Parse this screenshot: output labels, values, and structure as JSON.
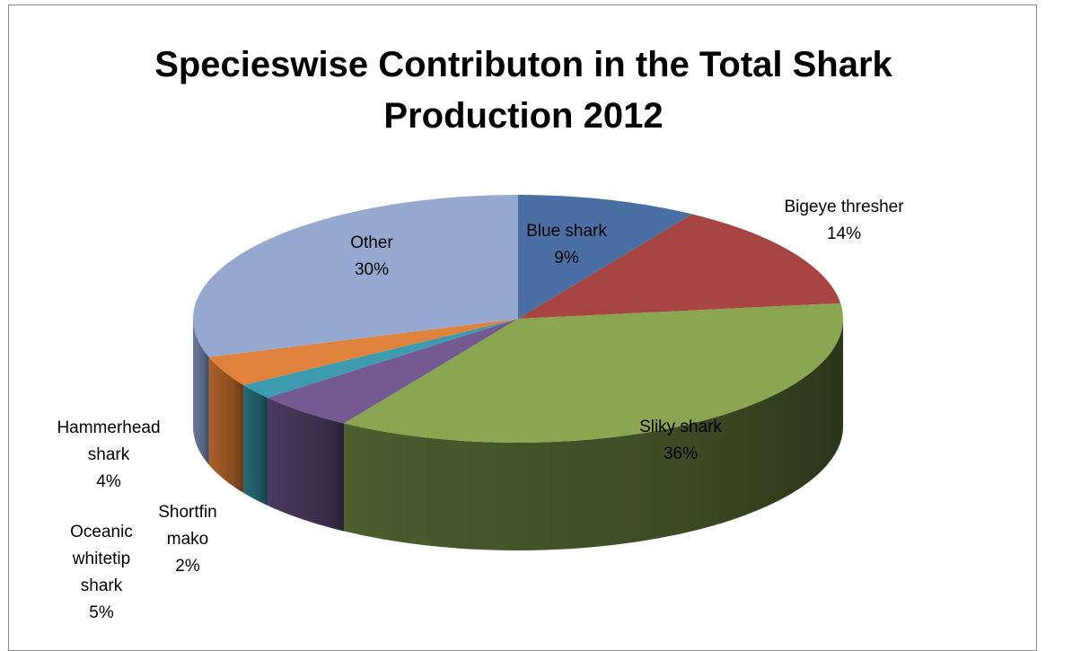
{
  "chart_data": {
    "type": "pie",
    "title_lines": [
      "Specieswise Contributon in the Total Shark",
      "Production  2012"
    ],
    "slices": [
      {
        "name": "Blue shark",
        "value": 9,
        "label": "9%",
        "color": "#4a6fa5",
        "side_color": "#2e4a72"
      },
      {
        "name": "Bigeye thresher",
        "value": 14,
        "label": "14%",
        "color": "#a64542",
        "side_color": "#6e2a28"
      },
      {
        "name": "Sliky shark",
        "value": 36,
        "label": "36%",
        "color": "#8aa650",
        "side_color": "#4f6330"
      },
      {
        "name": "Oceanic whitetip shark",
        "value": 5,
        "label": "5%",
        "color": "#745a90",
        "side_color": "#4f3d64"
      },
      {
        "name": "Shortfin mako",
        "value": 2,
        "label": "2%",
        "color": "#3d9bb0",
        "side_color": "#26707f"
      },
      {
        "name": "Hammerhead shark",
        "value": 4,
        "label": "4%",
        "color": "#e0823e",
        "side_color": "#b5652a"
      },
      {
        "name": "Other",
        "value": 30,
        "label": "30%",
        "color": "#94a8d0",
        "side_color": "#6f82a8"
      }
    ],
    "legend": "none",
    "style": "3d-pie"
  }
}
